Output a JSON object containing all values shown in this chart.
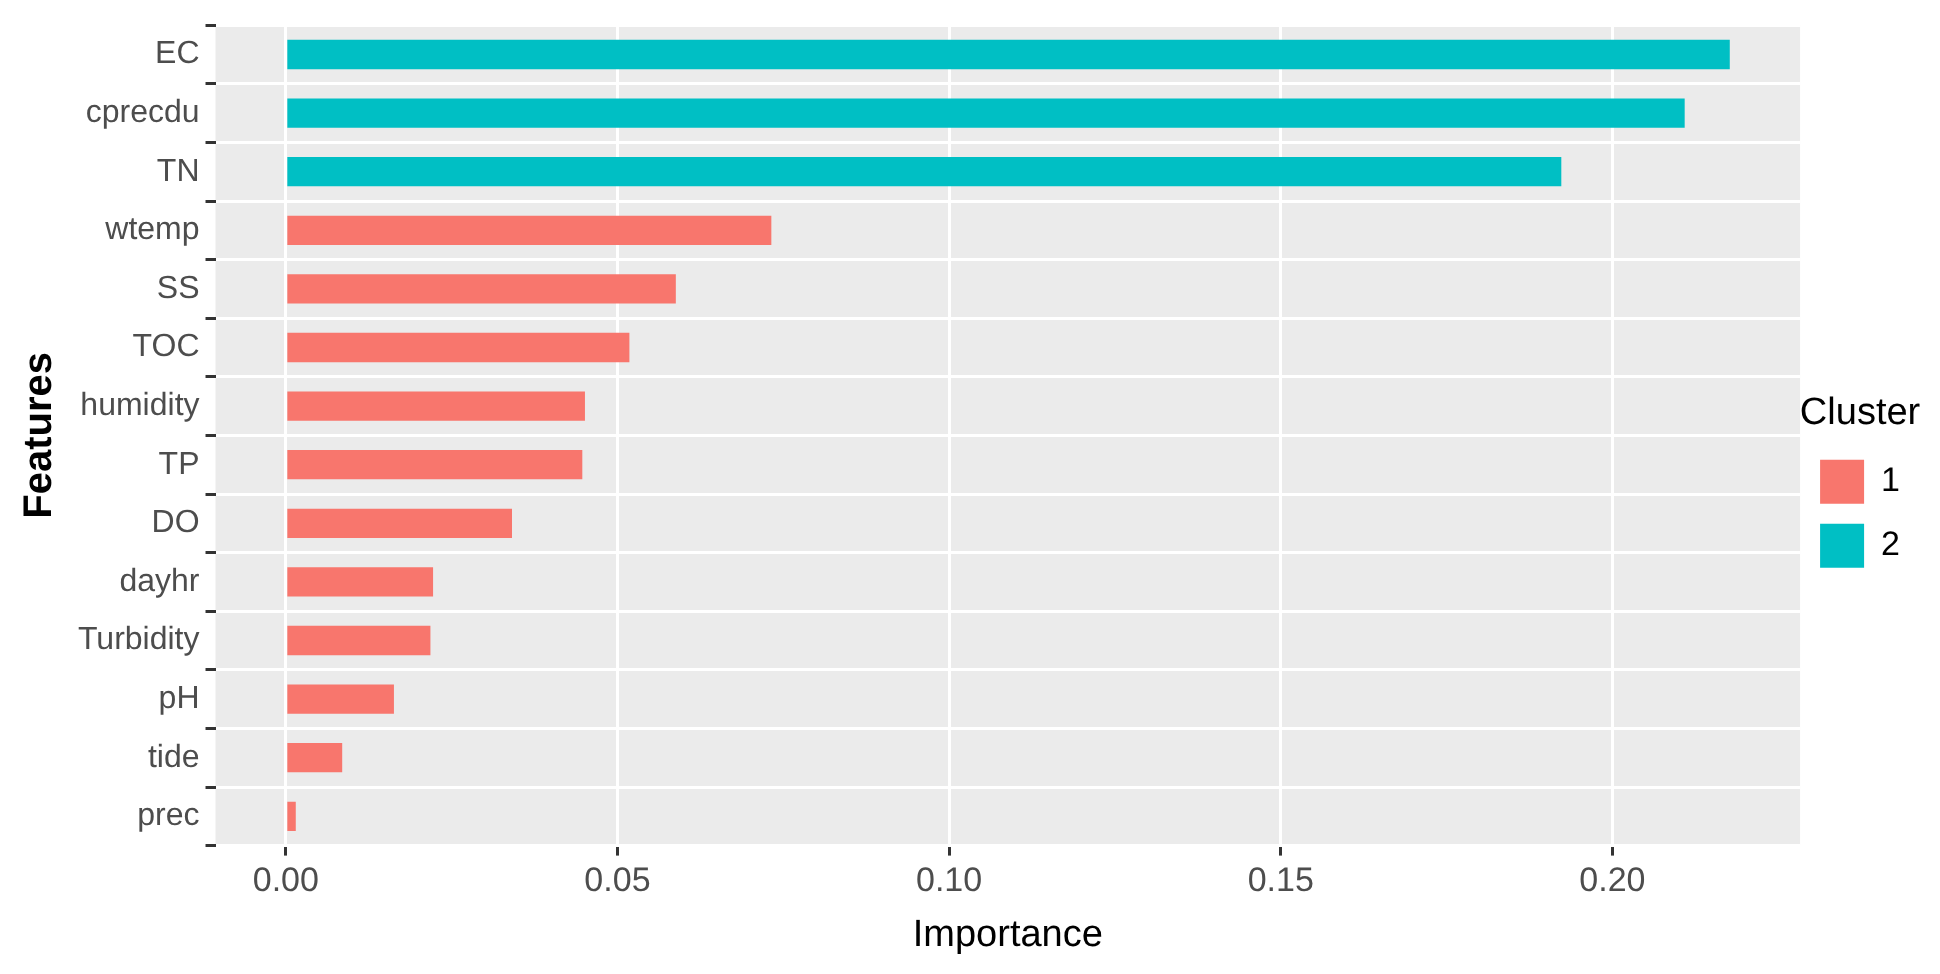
{
  "chart_data": {
    "type": "bar",
    "orientation": "horizontal",
    "xlabel": "Importance",
    "ylabel": "Features",
    "legend_title": "Cluster",
    "legend": "right",
    "categories": [
      "EC",
      "cprecdu",
      "TN",
      "wtemp",
      "SS",
      "TOC",
      "humidity",
      "TP",
      "DO",
      "dayhr",
      "Turbidity",
      "pH",
      "tide",
      "prec"
    ],
    "series": [
      {
        "name": "1",
        "color": "#f8766d",
        "values": [
          null,
          null,
          null,
          0.0732,
          0.0588,
          0.0518,
          0.0451,
          0.0447,
          0.0341,
          0.0222,
          0.0218,
          0.0163,
          0.0085,
          0.0015
        ]
      },
      {
        "name": "2",
        "color": "#00bfc4",
        "values": [
          0.2177,
          0.2109,
          0.1923,
          null,
          null,
          null,
          null,
          null,
          null,
          null,
          null,
          null,
          null,
          null
        ]
      }
    ],
    "xlim": [
      -0.0106,
      0.2283
    ],
    "xticks": [
      {
        "value": 0,
        "label": "0.00"
      },
      {
        "value": 0.05,
        "label": "0.05"
      },
      {
        "value": 0.1,
        "label": "0.10"
      },
      {
        "value": 0.15,
        "label": "0.15"
      },
      {
        "value": 0.2,
        "label": "0.20"
      }
    ],
    "grid": true
  }
}
